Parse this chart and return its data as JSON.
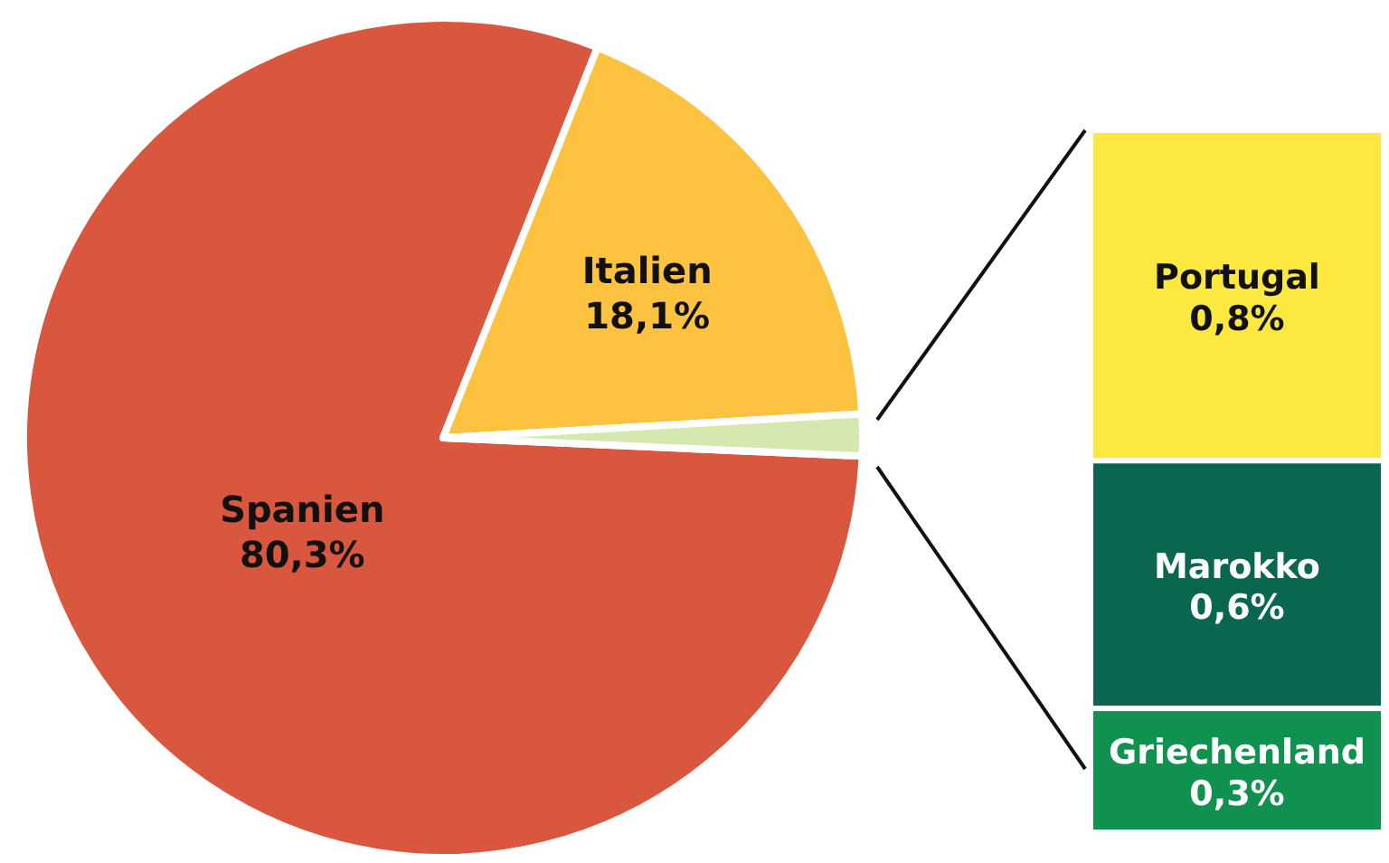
{
  "chart_data": [
    {
      "type": "pie",
      "categories": [
        "Spanien",
        "Italien",
        null
      ],
      "values": [
        80.3,
        18.1,
        1.6
      ],
      "colors": [
        "#d9573f",
        "#fdc240",
        "#d4e8b0"
      ],
      "value_labels": [
        "80,3%",
        "18,1%",
        null
      ]
    },
    {
      "type": "bar",
      "stacked": true,
      "categories": [
        null
      ],
      "series": [
        {
          "name": "Griechenland",
          "color": "#119150",
          "values": [
            0.3
          ],
          "value_labels": [
            "0,3%"
          ]
        },
        {
          "name": "Marokko",
          "color": "#0a6650",
          "values": [
            0.6
          ],
          "value_labels": [
            "0,6%"
          ]
        },
        {
          "name": "Portugal",
          "color": "#fde83f",
          "values": [
            0.8
          ],
          "value_labels": [
            "0,8%"
          ]
        }
      ]
    }
  ]
}
